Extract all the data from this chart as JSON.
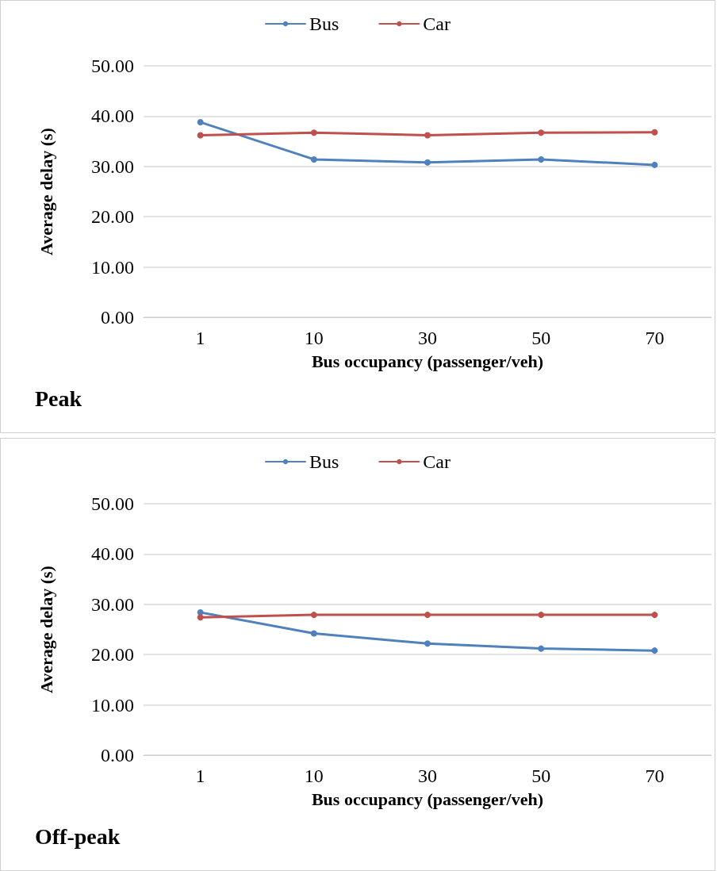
{
  "chart_data": [
    {
      "type": "line",
      "title": "Peak",
      "xlabel": "Bus occupancy (passenger/veh)",
      "ylabel": "Average delay (s)",
      "categories": [
        "1",
        "10",
        "30",
        "50",
        "70"
      ],
      "series": [
        {
          "name": "Bus",
          "color": "#4f81bd",
          "values": [
            38.8,
            31.4,
            30.8,
            31.4,
            30.3
          ]
        },
        {
          "name": "Car",
          "color": "#c0504d",
          "values": [
            36.2,
            36.7,
            36.2,
            36.7,
            36.8
          ]
        }
      ],
      "ylim": [
        0,
        50
      ],
      "yticks": [
        {
          "value": 0,
          "label": "0.00"
        },
        {
          "value": 10,
          "label": "10.00"
        },
        {
          "value": 20,
          "label": "20.00"
        },
        {
          "value": 30,
          "label": "30.00"
        },
        {
          "value": 40,
          "label": "40.00"
        },
        {
          "value": 50,
          "label": "50.00"
        }
      ],
      "grid": "y",
      "legend": "top",
      "marker": "circle",
      "line_style": "solid"
    },
    {
      "type": "line",
      "title": "Off-peak",
      "xlabel": "Bus occupancy (passenger/veh)",
      "ylabel": "Average delay (s)",
      "categories": [
        "1",
        "10",
        "30",
        "50",
        "70"
      ],
      "series": [
        {
          "name": "Bus",
          "color": "#4f81bd",
          "values": [
            28.4,
            24.2,
            22.2,
            21.2,
            20.8
          ]
        },
        {
          "name": "Car",
          "color": "#c0504d",
          "values": [
            27.4,
            27.9,
            27.9,
            27.9,
            27.9
          ]
        }
      ],
      "ylim": [
        0,
        50
      ],
      "yticks": [
        {
          "value": 0,
          "label": "0.00"
        },
        {
          "value": 10,
          "label": "10.00"
        },
        {
          "value": 20,
          "label": "20.00"
        },
        {
          "value": 30,
          "label": "30.00"
        },
        {
          "value": 40,
          "label": "40.00"
        },
        {
          "value": 50,
          "label": "50.00"
        }
      ],
      "grid": "y",
      "legend": "top",
      "marker": "circle",
      "line_style": "solid"
    }
  ]
}
